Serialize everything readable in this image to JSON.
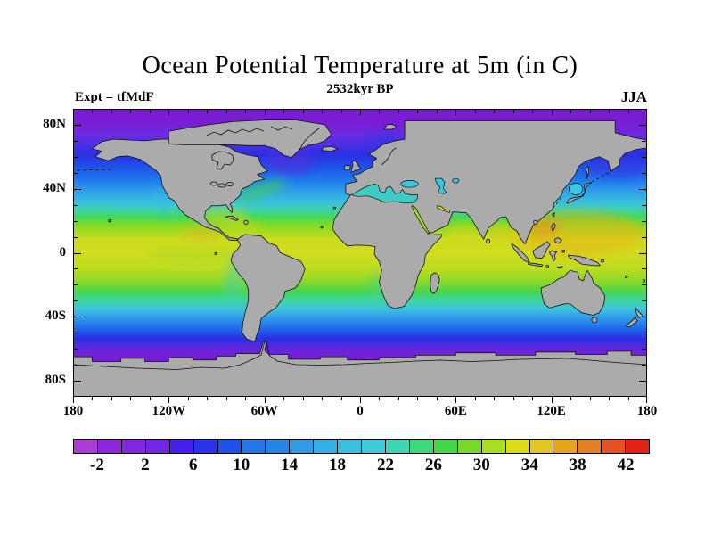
{
  "header": {
    "title": "Ocean Potential Temperature at 5m (in C)",
    "subtitle": "2532kyr BP",
    "experiment_label": "Expt = tfMdF",
    "season_label": "JJA"
  },
  "axes": {
    "lat": [
      {
        "value": 80,
        "label": "80N"
      },
      {
        "value": 40,
        "label": "40N"
      },
      {
        "value": 0,
        "label": "0"
      },
      {
        "value": -40,
        "label": "40S"
      },
      {
        "value": -80,
        "label": "80S"
      }
    ],
    "lon": [
      {
        "value": -180,
        "label": "180"
      },
      {
        "value": -120,
        "label": "120W"
      },
      {
        "value": -60,
        "label": "60W"
      },
      {
        "value": 0,
        "label": "0"
      },
      {
        "value": 60,
        "label": "60E"
      },
      {
        "value": 120,
        "label": "120E"
      },
      {
        "value": 180,
        "label": "180"
      }
    ]
  },
  "colorbar": {
    "min": -4,
    "max": 44,
    "cell_step": 2,
    "colors": [
      "#ab3cd8",
      "#8e26e0",
      "#8128e2",
      "#7426e6",
      "#4420ea",
      "#2a32e6",
      "#1e50ec",
      "#2277ec",
      "#2484ea",
      "#2e9ce8",
      "#30b0e6",
      "#38c0e0",
      "#3eccdc",
      "#3ed6b4",
      "#3cd87c",
      "#42d844",
      "#7cd826",
      "#aade20",
      "#dcde1c",
      "#e6c422",
      "#e8a41e",
      "#e87e22",
      "#e8501f",
      "#e02213"
    ],
    "tick_values": [
      -2,
      2,
      6,
      10,
      14,
      18,
      22,
      26,
      30,
      34,
      38,
      42
    ],
    "tick_labels": [
      "-2",
      "2",
      "6",
      "10",
      "14",
      "18",
      "22",
      "26",
      "30",
      "34",
      "38",
      "42"
    ]
  },
  "map": {
    "land_color": "#ababab",
    "coast_color": "#111111",
    "inland_seas": {
      "mediterranean": "#3cccc4",
      "black_sea": "#38c8dc",
      "caspian_sea": "#38c8e0",
      "aral_sea": "#40c8d8",
      "red_sea": "#9cdc1c",
      "persian_gulf": "#c8dc20",
      "sea_of_japan": "#38c8e0"
    }
  },
  "chart_data": {
    "type": "heatmap",
    "title": "Ocean Potential Temperature at 5m (in C)",
    "subtitle": "2532kyr BP",
    "experiment": "tfMdF",
    "season": "JJA",
    "variable": "ocean potential temperature at 5 m depth",
    "units": "degrees C",
    "projection": "equirectangular world map",
    "lon_range": [
      -180,
      180
    ],
    "lat_range": [
      -90,
      90
    ],
    "colorbar_range": [
      -4,
      44
    ],
    "colorbar_interval": 2,
    "colorbar_labels": [
      -2,
      2,
      6,
      10,
      14,
      18,
      22,
      26,
      30,
      34,
      38,
      42
    ],
    "zonal_mean_estimates": [
      {
        "lat": 85,
        "C": -1
      },
      {
        "lat": 70,
        "C": 0
      },
      {
        "lat": 60,
        "C": 3
      },
      {
        "lat": 50,
        "C": 8
      },
      {
        "lat": 45,
        "C": 11
      },
      {
        "lat": 40,
        "C": 14
      },
      {
        "lat": 35,
        "C": 17
      },
      {
        "lat": 30,
        "C": 21
      },
      {
        "lat": 25,
        "C": 24
      },
      {
        "lat": 20,
        "C": 27
      },
      {
        "lat": 10,
        "C": 29
      },
      {
        "lat": 0,
        "C": 29
      },
      {
        "lat": -10,
        "C": 28
      },
      {
        "lat": -20,
        "C": 26
      },
      {
        "lat": -30,
        "C": 21
      },
      {
        "lat": -40,
        "C": 13
      },
      {
        "lat": -50,
        "C": 5
      },
      {
        "lat": -57,
        "C": 1
      },
      {
        "lat": -65,
        "C": -1
      }
    ],
    "regional_features": [
      {
        "name": "West Pacific warm pool",
        "approx_C": 30
      },
      {
        "name": "South China Sea / Philippine Sea maximum",
        "approx_C": 31
      },
      {
        "name": "Gulf of Mexico / Caribbean",
        "approx_C": 29
      },
      {
        "name": "Gulf Stream warm tongue",
        "approx_C": 24
      },
      {
        "name": "Mediterranean Sea",
        "approx_C": 22
      },
      {
        "name": "Black Sea",
        "approx_C": 20
      },
      {
        "name": "Caspian Sea",
        "approx_C": 20
      },
      {
        "name": "Red Sea",
        "approx_C": 31
      },
      {
        "name": "Persian Gulf",
        "approx_C": 32
      },
      {
        "name": "Peru coastal upwelling",
        "approx_C": 22
      },
      {
        "name": "Southern Ocean circumpolar band",
        "approx_C": -1
      },
      {
        "name": "Arctic band",
        "approx_C": -1
      },
      {
        "name": "Land/ice mask",
        "value": "gray"
      }
    ]
  }
}
